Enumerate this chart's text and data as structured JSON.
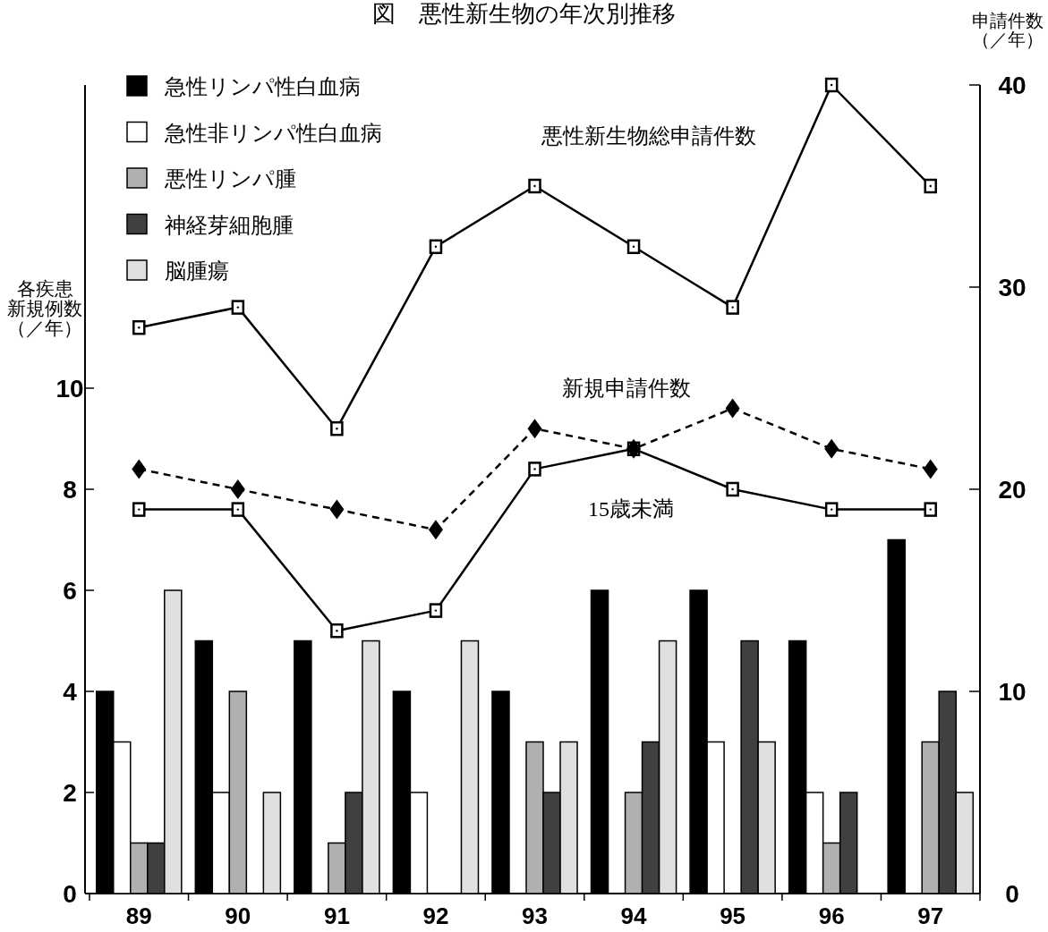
{
  "chart_data": {
    "type": "bar",
    "title": "図　悪性新生物の年次別推移",
    "ylabel": "各疾患新規例数（／年）",
    "y2label": "申請件数（／年）",
    "categories": [
      "89",
      "90",
      "91",
      "92",
      "93",
      "94",
      "95",
      "96",
      "97"
    ],
    "ylim": [
      0,
      16
    ],
    "yticks": [
      0,
      2,
      4,
      6,
      8,
      10
    ],
    "y2lim": [
      0,
      40
    ],
    "y2ticks": [
      0,
      10,
      20,
      30,
      40
    ],
    "legend": "top left",
    "series": [
      {
        "name": "急性リンパ性白血病",
        "color": "#000000",
        "values": [
          4,
          5,
          5,
          4,
          4,
          6,
          6,
          5,
          7
        ]
      },
      {
        "name": "急性非リンパ性白血病",
        "color": "#ffffff",
        "values": [
          3,
          2,
          0,
          2,
          0,
          0,
          3,
          2,
          0
        ]
      },
      {
        "name": "悪性リンパ腫",
        "color": "#b0b0b0",
        "values": [
          1,
          4,
          1,
          0,
          3,
          2,
          0,
          1,
          3
        ]
      },
      {
        "name": "神経芽細胞腫",
        "color": "#404040",
        "values": [
          1,
          0,
          2,
          0,
          2,
          3,
          5,
          2,
          4
        ]
      },
      {
        "name": "脳腫瘍",
        "color": "#e0e0e0",
        "values": [
          6,
          2,
          5,
          5,
          3,
          5,
          3,
          0,
          2
        ]
      },
      {
        "name": "悪性新生物総申請件数",
        "type": "line",
        "axis": "y2",
        "color": "#000000",
        "marker": "square",
        "line_style": "solid",
        "values": [
          28,
          29,
          23,
          32,
          35,
          32,
          29,
          40,
          35
        ]
      },
      {
        "name": "新規申請件数",
        "type": "line",
        "axis": "y2",
        "color": "#000000",
        "marker": "diamond",
        "line_style": "dashed",
        "values": [
          21,
          20,
          19,
          18,
          23,
          22,
          24,
          22,
          21
        ]
      },
      {
        "name": "15歳未満",
        "type": "line",
        "axis": "y2",
        "color": "#000000",
        "marker": "square",
        "line_style": "solid",
        "values": [
          19,
          19,
          13,
          14,
          21,
          22,
          20,
          19,
          19
        ]
      }
    ]
  }
}
